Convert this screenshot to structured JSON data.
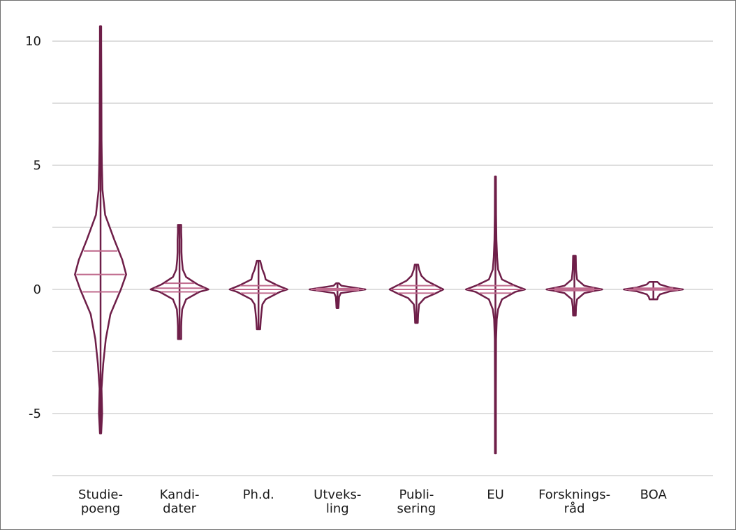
{
  "chart_data": {
    "type": "violin",
    "title": "",
    "xlabel": "",
    "ylabel": "",
    "ylim": [
      -7.5,
      11.2
    ],
    "yticks": [
      10,
      5,
      0,
      -5
    ],
    "ytick_labels": [
      "10",
      "5",
      "0",
      "-5"
    ],
    "gridlines": [
      10,
      7.5,
      5,
      2.5,
      0,
      -2.5,
      -5,
      -7.5
    ],
    "grid": true,
    "legend": "none",
    "outline_color": "#6e1e48",
    "quartile_color": "#c06b8e",
    "grid_color": "#bdbdbd",
    "categories": [
      {
        "label_lines": [
          "Studie-",
          "poeng"
        ],
        "min": -5.8,
        "max": 10.6,
        "quartiles": [
          -0.1,
          0.6,
          1.55
        ],
        "density": [
          [
            -5.8,
            0.02
          ],
          [
            -5,
            0.05
          ],
          [
            -4,
            0.03
          ],
          [
            -3,
            0.08
          ],
          [
            -2,
            0.16
          ],
          [
            -1,
            0.3
          ],
          [
            0,
            0.62
          ],
          [
            0.6,
            0.78
          ],
          [
            1.2,
            0.66
          ],
          [
            2,
            0.42
          ],
          [
            3,
            0.14
          ],
          [
            4,
            0.06
          ],
          [
            5,
            0.04
          ],
          [
            6,
            0.03
          ],
          [
            8,
            0.025
          ],
          [
            10,
            0.02
          ],
          [
            10.6,
            0.02
          ]
        ]
      },
      {
        "label_lines": [
          "Kandi-",
          "dater"
        ],
        "min": -2.0,
        "max": 2.6,
        "quartiles": [
          -0.1,
          0.05,
          0.25
        ],
        "density": [
          [
            -2.0,
            0.05
          ],
          [
            -1.5,
            0.05
          ],
          [
            -1.2,
            0.06
          ],
          [
            -0.8,
            0.08
          ],
          [
            -0.4,
            0.2
          ],
          [
            -0.1,
            0.6
          ],
          [
            0,
            0.88
          ],
          [
            0.2,
            0.55
          ],
          [
            0.5,
            0.2
          ],
          [
            0.8,
            0.1
          ],
          [
            1.2,
            0.07
          ],
          [
            1.5,
            0.06
          ],
          [
            2.0,
            0.06
          ],
          [
            2.3,
            0.05
          ],
          [
            2.6,
            0.05
          ]
        ]
      },
      {
        "label_lines": [
          "Ph.d."
        ],
        "min": -1.6,
        "max": 1.15,
        "quartiles": [
          -0.15,
          0.0,
          0.15
        ],
        "density": [
          [
            -1.6,
            0.05
          ],
          [
            -1.2,
            0.07
          ],
          [
            -0.8,
            0.1
          ],
          [
            -0.6,
            0.12
          ],
          [
            -0.4,
            0.22
          ],
          [
            -0.1,
            0.65
          ],
          [
            0,
            0.88
          ],
          [
            0.15,
            0.6
          ],
          [
            0.4,
            0.22
          ],
          [
            0.6,
            0.18
          ],
          [
            0.8,
            0.12
          ],
          [
            1.0,
            0.08
          ],
          [
            1.15,
            0.05
          ]
        ]
      },
      {
        "label_lines": [
          "Utveks-",
          "ling"
        ],
        "min": -0.75,
        "max": 0.25,
        "quartiles": [
          -0.03,
          0.0,
          0.03
        ],
        "density": [
          [
            -0.75,
            0.03
          ],
          [
            -0.5,
            0.04
          ],
          [
            -0.3,
            0.05
          ],
          [
            -0.15,
            0.1
          ],
          [
            -0.05,
            0.6
          ],
          [
            0,
            0.85
          ],
          [
            0.05,
            0.6
          ],
          [
            0.15,
            0.12
          ],
          [
            0.25,
            0.04
          ]
        ]
      },
      {
        "label_lines": [
          "Publi-",
          "sering"
        ],
        "min": -1.35,
        "max": 1.0,
        "quartiles": [
          -0.15,
          0.0,
          0.15
        ],
        "density": [
          [
            -1.35,
            0.04
          ],
          [
            -1.0,
            0.05
          ],
          [
            -0.6,
            0.08
          ],
          [
            -0.35,
            0.25
          ],
          [
            -0.15,
            0.6
          ],
          [
            0,
            0.82
          ],
          [
            0.15,
            0.6
          ],
          [
            0.35,
            0.3
          ],
          [
            0.55,
            0.15
          ],
          [
            0.8,
            0.08
          ],
          [
            1.0,
            0.05
          ]
        ]
      },
      {
        "label_lines": [
          "EU"
        ],
        "min": -6.6,
        "max": 4.55,
        "quartiles": [
          -0.15,
          0.0,
          0.15
        ],
        "density": [
          [
            -6.6,
            0.015
          ],
          [
            -4,
            0.015
          ],
          [
            -2,
            0.02
          ],
          [
            -1.2,
            0.04
          ],
          [
            -0.8,
            0.08
          ],
          [
            -0.4,
            0.2
          ],
          [
            -0.1,
            0.6
          ],
          [
            0,
            0.9
          ],
          [
            0.15,
            0.6
          ],
          [
            0.4,
            0.2
          ],
          [
            0.8,
            0.08
          ],
          [
            1.3,
            0.05
          ],
          [
            2,
            0.03
          ],
          [
            3,
            0.02
          ],
          [
            4.55,
            0.015
          ]
        ]
      },
      {
        "label_lines": [
          "Forsknings-",
          "råd"
        ],
        "min": -1.05,
        "max": 1.35,
        "quartiles": [
          -0.05,
          0.0,
          0.05
        ],
        "density": [
          [
            -1.05,
            0.04
          ],
          [
            -0.7,
            0.05
          ],
          [
            -0.4,
            0.08
          ],
          [
            -0.15,
            0.3
          ],
          [
            -0.05,
            0.65
          ],
          [
            0,
            0.85
          ],
          [
            0.05,
            0.65
          ],
          [
            0.15,
            0.3
          ],
          [
            0.4,
            0.08
          ],
          [
            0.8,
            0.05
          ],
          [
            1.35,
            0.04
          ]
        ]
      },
      {
        "label_lines": [
          "BOA"
        ],
        "min": -0.4,
        "max": 0.3,
        "quartiles": [
          -0.02,
          0.0,
          0.05
        ],
        "density": [
          [
            -0.4,
            0.12
          ],
          [
            -0.3,
            0.14
          ],
          [
            -0.2,
            0.2
          ],
          [
            -0.08,
            0.5
          ],
          [
            0,
            0.9
          ],
          [
            0.08,
            0.5
          ],
          [
            0.2,
            0.2
          ],
          [
            0.28,
            0.14
          ],
          [
            0.3,
            0.12
          ]
        ]
      }
    ]
  }
}
